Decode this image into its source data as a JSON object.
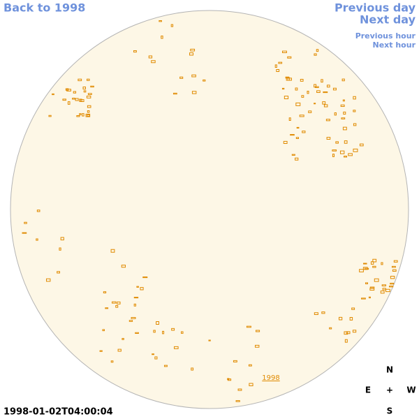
{
  "nav": {
    "back": "Back to 1998",
    "previous_day": "Previous day",
    "next_day": "Next day",
    "previous_hour": "Previous hour",
    "next_hour": "Next hour"
  },
  "timestamp": "1998-01-02T04:00:04",
  "disk_label": "1998",
  "compass": {
    "north": "N",
    "east": "E",
    "center": "+",
    "west": "W",
    "south": "S"
  }
}
